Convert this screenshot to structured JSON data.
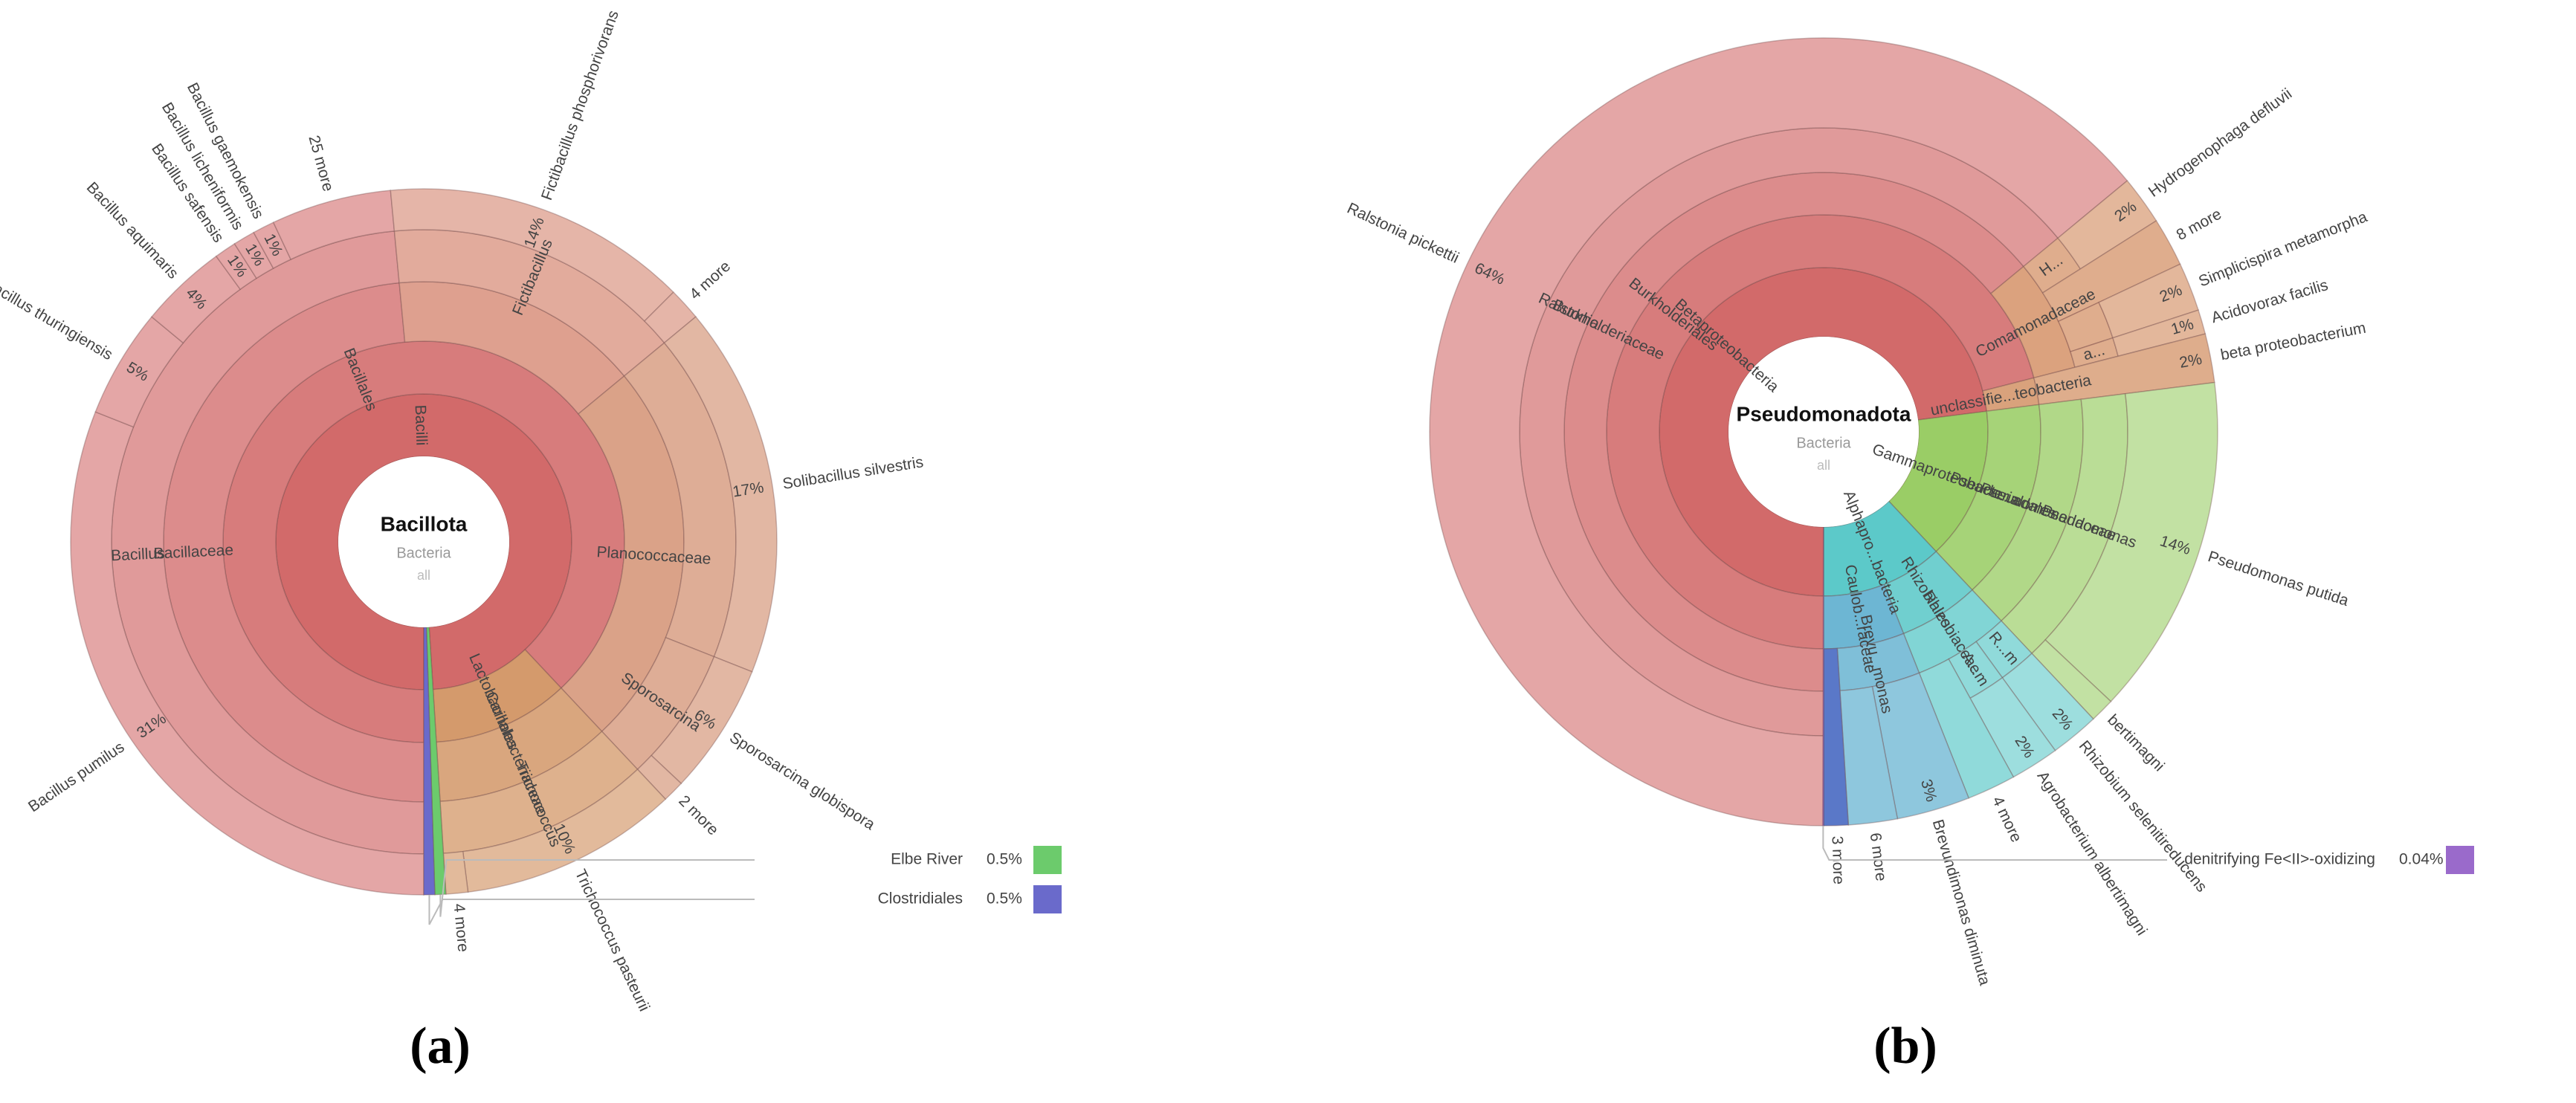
{
  "chart_data": [
    {
      "type": "sunburst",
      "caption": "(a)",
      "center": {
        "title": "Bacillota",
        "lines": [
          "Bacteria",
          "all"
        ]
      },
      "tree": [
        {
          "name": "Bacilli",
          "color": "#d26a6a",
          "children": [
            {
              "name": "Bacillales",
              "children": [
                {
                  "name": "Bacillaceae",
                  "children": [
                    {
                      "name": "Bacillus",
                      "children": [
                        {
                          "name": "Bacillus pumilus",
                          "value": 31,
                          "value_label": "31%"
                        },
                        {
                          "name": "Bacillus thuringiensis",
                          "value": 5,
                          "value_label": "5%"
                        },
                        {
                          "name": "Bacillus aquimaris",
                          "value": 4,
                          "value_label": "4%"
                        },
                        {
                          "name": "Bacillus safensis",
                          "value": 1,
                          "value_label": "1%"
                        },
                        {
                          "name": "Bacillus licheniformis",
                          "value": 1,
                          "value_label": "1%"
                        },
                        {
                          "name": "Bacillus gaemokensis",
                          "value": 1,
                          "value_label": "1%"
                        },
                        {
                          "name": "25 more",
                          "value": 5.5
                        }
                      ]
                    }
                  ]
                },
                {
                  "name": null,
                  "color": "#dea08f",
                  "children": [
                    {
                      "name": "Fictibacillus",
                      "children": [
                        {
                          "name": "Fictibacillus phosphorivorans",
                          "value": 14,
                          "value_label": "14%"
                        },
                        {
                          "name": "4 more",
                          "value": 1.5
                        }
                      ]
                    }
                  ]
                },
                {
                  "name": "Planococcaceae",
                  "color": "#daa288",
                  "children": [
                    {
                      "name": null,
                      "children": [
                        {
                          "name": "Solibacillus silvestris",
                          "value": 17,
                          "value_label": "17%"
                        }
                      ]
                    },
                    {
                      "name": "Sporosarcina",
                      "children": [
                        {
                          "name": "Sporosarcina globispora",
                          "value": 6,
                          "value_label": "6%"
                        },
                        {
                          "name": "2 more",
                          "value": 1
                        }
                      ]
                    }
                  ]
                }
              ]
            },
            {
              "name": "Lactobacillales",
              "color": "#d49a6c",
              "children": [
                {
                  "name": "Carnobacteriaceae",
                  "children": [
                    {
                      "name": "Trichococcus",
                      "children": [
                        {
                          "name": "Trichococcus pasteurii",
                          "value": 10,
                          "value_label": "10%"
                        },
                        {
                          "name": "4 more",
                          "value": 1
                        }
                      ]
                    }
                  ]
                }
              ]
            }
          ]
        },
        {
          "name": "Elbe River",
          "value": 0.5,
          "value_label": "0.5%",
          "color": "#6ccb6c"
        },
        {
          "name": "Clostridiales",
          "value": 0.5,
          "value_label": "0.5%",
          "color": "#6a6acb"
        }
      ]
    },
    {
      "type": "sunburst",
      "caption": "(b)",
      "center": {
        "title": "Pseudomonadota",
        "lines": [
          "Bacteria",
          "all"
        ]
      },
      "tree": [
        {
          "name": "Betaproteobacteria",
          "color": "#d26a6a",
          "children": [
            {
              "name": "Burkholderiales",
              "children": [
                {
                  "name": "Burkholderiaceae",
                  "children": [
                    {
                      "name": "Ralstonia",
                      "children": [
                        {
                          "name": "Ralstonia pickettii",
                          "value": 64,
                          "value_label": "64%"
                        }
                      ]
                    }
                  ]
                },
                {
                  "name": "Comamonadaceae",
                  "color": "#dba27e",
                  "children": [
                    {
                      "name": "H...",
                      "children": [
                        {
                          "name": "Hydrogenophaga defluvii",
                          "value": 2,
                          "value_label": "2%"
                        }
                      ]
                    },
                    {
                      "name": "8 more",
                      "value": 2
                    },
                    {
                      "name": null,
                      "children": [
                        {
                          "name": "Simplicispira metamorpha",
                          "value": 2,
                          "value_label": "2%"
                        }
                      ]
                    },
                    {
                      "name": "a...",
                      "children": [
                        {
                          "name": "Acidovorax facilis",
                          "value": 1,
                          "value_label": "1%"
                        }
                      ]
                    }
                  ]
                }
              ]
            },
            {
              "name": "unclassifie...teobacteria",
              "color": "#d9a27c",
              "children": [
                {
                  "name": "beta proteobacterium",
                  "value": 2,
                  "value_label": "2%"
                }
              ]
            }
          ]
        },
        {
          "name": "Gammaproteobacteria",
          "color": "#9acd66",
          "children": [
            {
              "name": "Pseudo...adales",
              "children": [
                {
                  "name": "Pseudomonadaceae",
                  "children": [
                    {
                      "name": "Pseudomonas",
                      "children": [
                        {
                          "name": "Pseudomonas putida",
                          "value": 14,
                          "value_label": "14%"
                        },
                        {
                          "name": "bertimagni",
                          "value": 1
                        }
                      ]
                    }
                  ]
                }
              ]
            }
          ]
        },
        {
          "name": "Alphapro...bacteria",
          "color": "#5cc9c9",
          "children": [
            {
              "name": "Rhizobiales",
              "children": [
                {
                  "name": "Rhizobiaceae",
                  "children": [
                    {
                      "name": "R...m",
                      "children": [
                        {
                          "name": "Rhizobium selenitireducens",
                          "value": 2,
                          "value_label": "2%"
                        }
                      ]
                    },
                    {
                      "name": "A...m",
                      "children": [
                        {
                          "name": "Agrobacterium albertimagni",
                          "value": 2,
                          "value_label": "2%"
                        }
                      ]
                    },
                    {
                      "name": "4 more",
                      "value": 2
                    }
                  ]
                }
              ]
            },
            {
              "name": "Caulob...raceae",
              "color": "#6db6d3",
              "children": [
                {
                  "name": "Brevu...monas",
                  "children": [
                    {
                      "name": "Brevundimonas diminuta",
                      "value": 3,
                      "value_label": "3%"
                    },
                    {
                      "name": "6 more",
                      "value": 2
                    }
                  ]
                },
                {
                  "name": "3 more",
                  "value": 1,
                  "color": "#5a78c8"
                }
              ]
            }
          ]
        },
        {
          "name": "denitrifying Fe<II>-oxidizing",
          "value": 0.04,
          "value_label": "0.04%",
          "color": "#9a6acb"
        }
      ]
    }
  ]
}
